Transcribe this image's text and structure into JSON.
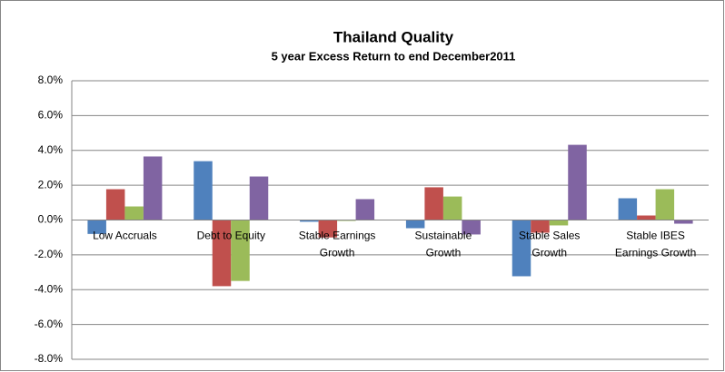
{
  "chart_data": {
    "type": "bar",
    "title": "Thailand Quality",
    "subtitle": "5 year Excess Return to end  December2011",
    "categories": [
      "Low Accruals",
      "Debt to Equity",
      "Stable Earnings Growth",
      "Sustainable Growth",
      "Stable Sales Growth",
      "Stable IBES Earnings Growth"
    ],
    "series": [
      {
        "color": "#4f81bd",
        "values": [
          -0.8,
          3.38,
          -0.1,
          -0.47,
          -3.23,
          1.25
        ]
      },
      {
        "color": "#c0504d",
        "values": [
          1.77,
          -3.8,
          -1.0,
          1.88,
          -0.73,
          0.26
        ]
      },
      {
        "color": "#9bbb59",
        "values": [
          0.78,
          -3.5,
          -0.05,
          1.35,
          -0.31,
          1.77
        ]
      },
      {
        "color": "#8064a2",
        "values": [
          3.65,
          2.5,
          1.2,
          -0.83,
          4.32,
          -0.21
        ]
      }
    ],
    "ylim": [
      -8,
      8
    ],
    "yticks": [
      {
        "value": -8,
        "label": "-8.0%"
      },
      {
        "value": -6,
        "label": "-6.0%"
      },
      {
        "value": -4,
        "label": "-4.0%"
      },
      {
        "value": -2,
        "label": "-2.0%"
      },
      {
        "value": 0,
        "label": "0.0%"
      },
      {
        "value": 2,
        "label": "2.0%"
      },
      {
        "value": 4,
        "label": "4.0%"
      },
      {
        "value": 6,
        "label": "6.0%"
      },
      {
        "value": 8,
        "label": "8.0%"
      }
    ],
    "grid": true
  }
}
